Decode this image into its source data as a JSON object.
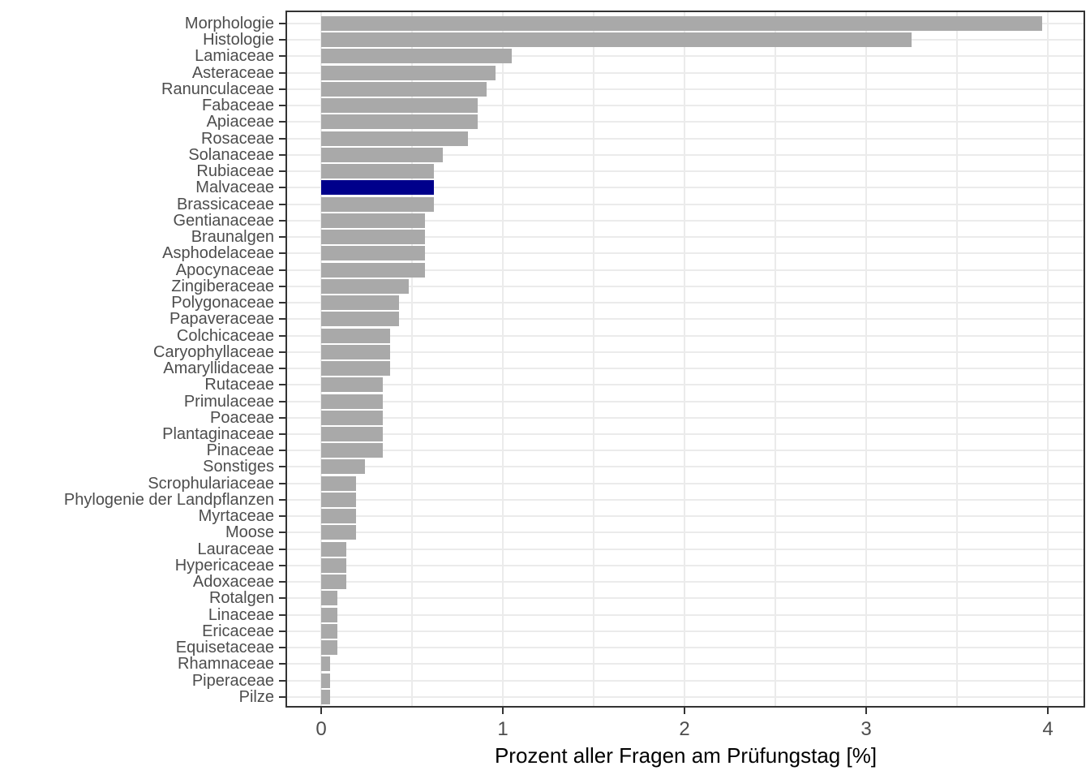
{
  "chart_data": {
    "type": "bar",
    "orientation": "horizontal",
    "title": "",
    "xlabel": "Prozent aller Fragen am Prüfungstag [%]",
    "ylabel": "",
    "xlim": [
      0,
      4.2
    ],
    "x_ticks": [
      0,
      1,
      2,
      3,
      4
    ],
    "grid": "major vertical at integers, minor vertical at halves, horizontal line per category",
    "legend": "none",
    "categories": [
      "Morphologie",
      "Histologie",
      "Lamiaceae",
      "Asteraceae",
      "Ranunculaceae",
      "Fabaceae",
      "Apiaceae",
      "Rosaceae",
      "Solanaceae",
      "Rubiaceae",
      "Malvaceae",
      "Brassicaceae",
      "Gentianaceae",
      "Braunalgen",
      "Asphodelaceae",
      "Apocynaceae",
      "Zingiberaceae",
      "Polygonaceae",
      "Papaveraceae",
      "Colchicaceae",
      "Caryophyllaceae",
      "Amaryllidaceae",
      "Rutaceae",
      "Primulaceae",
      "Poaceae",
      "Plantaginaceae",
      "Pinaceae",
      "Sonstiges",
      "Scrophulariaceae",
      "Phylogenie der Landpflanzen",
      "Myrtaceae",
      "Moose",
      "Lauraceae",
      "Hypericaceae",
      "Adoxaceae",
      "Rotalgen",
      "Linaceae",
      "Ericaceae",
      "Equisetaceae",
      "Rhamnaceae",
      "Piperaceae",
      "Pilze"
    ],
    "values": [
      3.97,
      3.25,
      1.05,
      0.96,
      0.91,
      0.86,
      0.86,
      0.81,
      0.67,
      0.62,
      0.62,
      0.62,
      0.57,
      0.57,
      0.57,
      0.57,
      0.48,
      0.43,
      0.43,
      0.38,
      0.38,
      0.38,
      0.34,
      0.34,
      0.34,
      0.34,
      0.34,
      0.24,
      0.19,
      0.19,
      0.19,
      0.19,
      0.14,
      0.14,
      0.14,
      0.09,
      0.09,
      0.09,
      0.09,
      0.05,
      0.05,
      0.05
    ],
    "highlight_category": "Malvaceae",
    "highlight_index": 10,
    "colors": {
      "bar": "#A9A9A9",
      "highlight": "#00008B",
      "grid": "#EBEBEB",
      "panel_border": "#333333",
      "axis_text": "#4D4D4D",
      "title_text": "#000000",
      "background": "#FFFFFF"
    }
  }
}
